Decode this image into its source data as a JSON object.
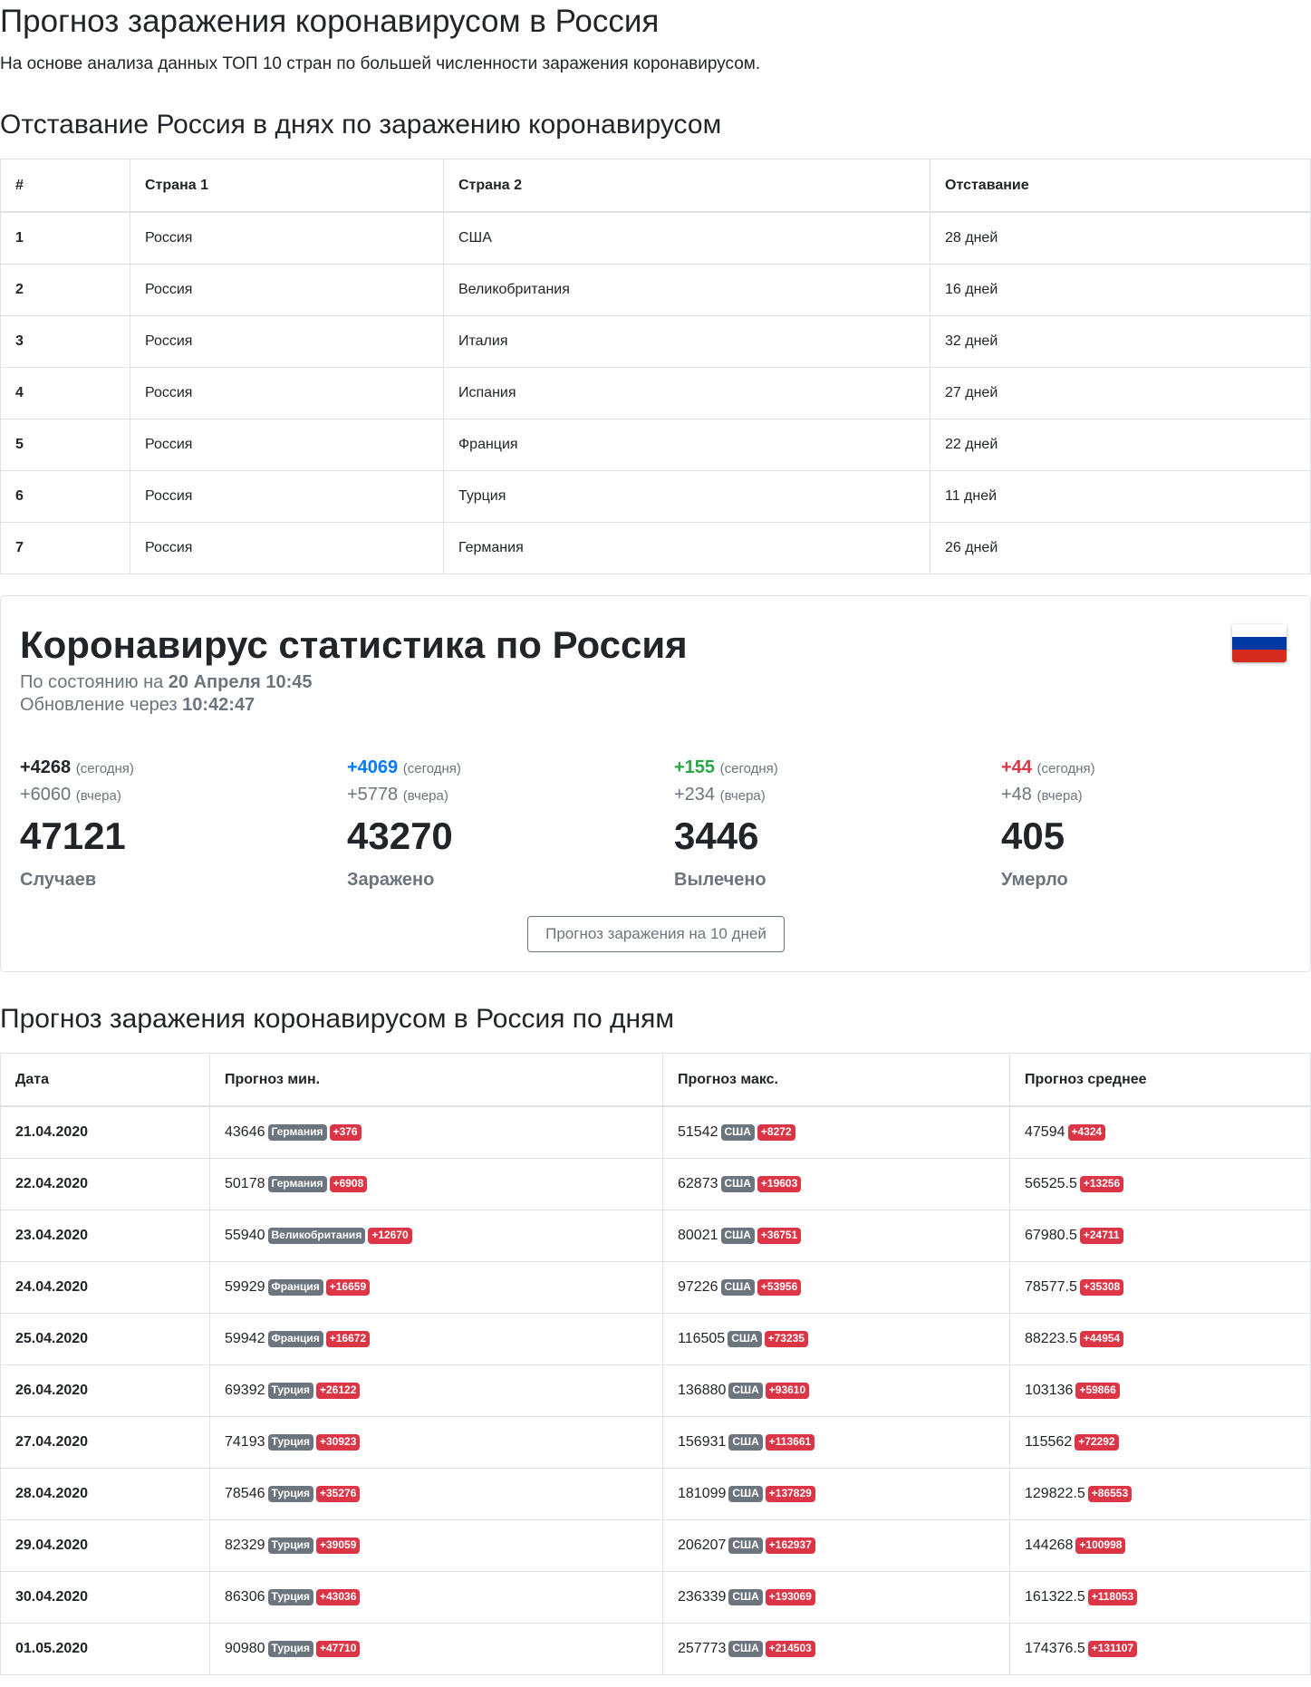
{
  "page": {
    "title": "Прогноз заражения коронавирусом в Россия",
    "lead": "На основе анализа данных ТОП 10 стран по большей численности заражения коронавирусом."
  },
  "lag": {
    "title": "Отставание Россия в днях по заражению коронавирусом",
    "headers": [
      "#",
      "Страна 1",
      "Страна 2",
      "Отставание"
    ],
    "rows": [
      [
        "1",
        "Россия",
        "США",
        "28 дней"
      ],
      [
        "2",
        "Россия",
        "Великобритания",
        "16 дней"
      ],
      [
        "3",
        "Россия",
        "Италия",
        "32 дней"
      ],
      [
        "4",
        "Россия",
        "Испания",
        "27 дней"
      ],
      [
        "5",
        "Россия",
        "Франция",
        "22 дней"
      ],
      [
        "6",
        "Россия",
        "Турция",
        "11 дней"
      ],
      [
        "7",
        "Россия",
        "Германия",
        "26 дней"
      ]
    ]
  },
  "stats": {
    "title": "Коронавирус статистика по Россия",
    "flag_colors": [
      "#ffffff",
      "#0039a6",
      "#d52b1e"
    ],
    "status_prefix": "По состоянию на",
    "status_date": "20 Апреля 10:45",
    "update_prefix": "Обновление через",
    "update_time": "10:42:47",
    "today_label": "(сегодня)",
    "yesterday_label": "(вчера)",
    "items": [
      {
        "today": "+4268",
        "yesterday": "+6060",
        "total": "47121",
        "label": "Случаев"
      },
      {
        "today": "+4069",
        "yesterday": "+5778",
        "total": "43270",
        "label": "Заражено"
      },
      {
        "today": "+155",
        "yesterday": "+234",
        "total": "3446",
        "label": "Вылечено"
      },
      {
        "today": "+44",
        "yesterday": "+48",
        "total": "405",
        "label": "Умерло"
      }
    ],
    "button_label": "Прогноз заражения на 10 дней"
  },
  "forecast": {
    "title": "Прогноз заражения коронавирусом в Россия по дням",
    "headers": [
      "Дата",
      "Прогноз мин.",
      "Прогноз макс.",
      "Прогноз среднее"
    ],
    "rows": [
      {
        "date": "21.04.2020",
        "min": "43646",
        "min_country": "Германия",
        "min_delta": "+376",
        "max": "51542",
        "max_country": "США",
        "max_delta": "+8272",
        "avg": "47594",
        "avg_delta": "+4324"
      },
      {
        "date": "22.04.2020",
        "min": "50178",
        "min_country": "Германия",
        "min_delta": "+6908",
        "max": "62873",
        "max_country": "США",
        "max_delta": "+19603",
        "avg": "56525.5",
        "avg_delta": "+13256"
      },
      {
        "date": "23.04.2020",
        "min": "55940",
        "min_country": "Великобритания",
        "min_delta": "+12670",
        "max": "80021",
        "max_country": "США",
        "max_delta": "+36751",
        "avg": "67980.5",
        "avg_delta": "+24711"
      },
      {
        "date": "24.04.2020",
        "min": "59929",
        "min_country": "Франция",
        "min_delta": "+16659",
        "max": "97226",
        "max_country": "США",
        "max_delta": "+53956",
        "avg": "78577.5",
        "avg_delta": "+35308"
      },
      {
        "date": "25.04.2020",
        "min": "59942",
        "min_country": "Франция",
        "min_delta": "+16672",
        "max": "116505",
        "max_country": "США",
        "max_delta": "+73235",
        "avg": "88223.5",
        "avg_delta": "+44954"
      },
      {
        "date": "26.04.2020",
        "min": "69392",
        "min_country": "Турция",
        "min_delta": "+26122",
        "max": "136880",
        "max_country": "США",
        "max_delta": "+93610",
        "avg": "103136",
        "avg_delta": "+59866"
      },
      {
        "date": "27.04.2020",
        "min": "74193",
        "min_country": "Турция",
        "min_delta": "+30923",
        "max": "156931",
        "max_country": "США",
        "max_delta": "+113661",
        "avg": "115562",
        "avg_delta": "+72292"
      },
      {
        "date": "28.04.2020",
        "min": "78546",
        "min_country": "Турция",
        "min_delta": "+35276",
        "max": "181099",
        "max_country": "США",
        "max_delta": "+137829",
        "avg": "129822.5",
        "avg_delta": "+86553"
      },
      {
        "date": "29.04.2020",
        "min": "82329",
        "min_country": "Турция",
        "min_delta": "+39059",
        "max": "206207",
        "max_country": "США",
        "max_delta": "+162937",
        "avg": "144268",
        "avg_delta": "+100998"
      },
      {
        "date": "30.04.2020",
        "min": "86306",
        "min_country": "Турция",
        "min_delta": "+43036",
        "max": "236339",
        "max_country": "США",
        "max_delta": "+193069",
        "avg": "161322.5",
        "avg_delta": "+118053"
      },
      {
        "date": "01.05.2020",
        "min": "90980",
        "min_country": "Турция",
        "min_delta": "+47710",
        "max": "257773",
        "max_country": "США",
        "max_delta": "+214503",
        "avg": "174376.5",
        "avg_delta": "+131107"
      }
    ]
  }
}
